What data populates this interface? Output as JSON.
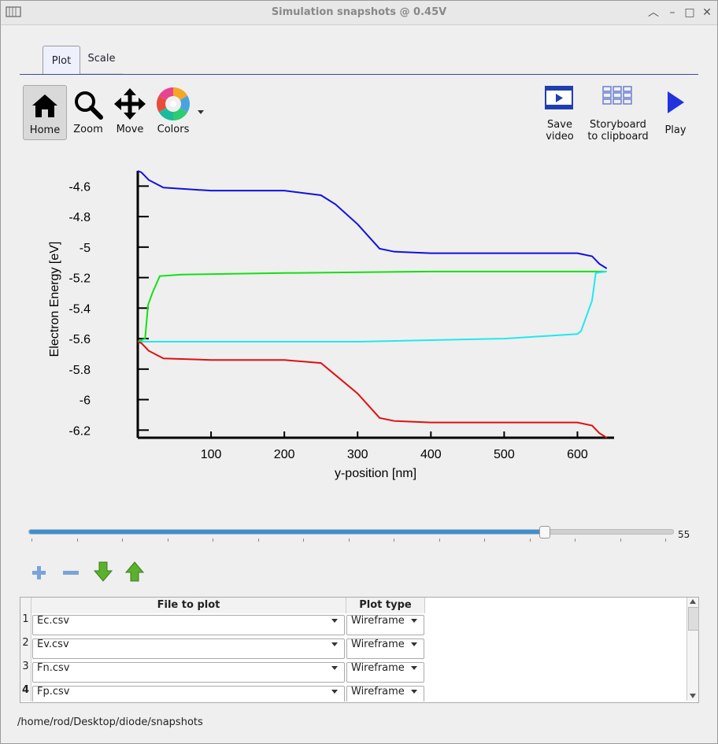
{
  "window": {
    "title": "Simulation snapshots @ 0.45V"
  },
  "tabs": [
    {
      "label": "Plot"
    },
    {
      "label": "Scale"
    }
  ],
  "toolbar": {
    "home": "Home",
    "zoom": "Zoom",
    "move": "Move",
    "colors": "Colors",
    "save_video_1": "Save",
    "save_video_2": "video",
    "storyboard_1": "Storyboard",
    "storyboard_2": "to clipboard",
    "play": "Play"
  },
  "chart_data": {
    "type": "line",
    "xlabel": "y-position [nm]",
    "ylabel": "Electron Energy [eV]",
    "xlim": [
      0,
      650
    ],
    "ylim": [
      -6.25,
      -4.5
    ],
    "xticks": [
      100,
      200,
      300,
      400,
      500,
      600
    ],
    "yticks": [
      -4.6,
      -4.8,
      -5,
      -5.2,
      -5.4,
      -5.6,
      -5.8,
      -6,
      -6.2
    ],
    "ytick_labels": [
      "-4.6",
      "-4.8",
      "-5",
      "-5.2",
      "-5.4",
      "-5.6",
      "-5.8",
      "-6",
      "-6.2"
    ],
    "grid": false,
    "series": [
      {
        "color": "#1010e0",
        "x": [
          0,
          5,
          15,
          35,
          100,
          200,
          250,
          270,
          300,
          330,
          350,
          400,
          500,
          600,
          620,
          630,
          640
        ],
        "y": [
          -4.5,
          -4.51,
          -4.56,
          -4.61,
          -4.63,
          -4.63,
          -4.66,
          -4.72,
          -4.85,
          -5.01,
          -5.03,
          -5.04,
          -5.04,
          -5.04,
          -5.06,
          -5.11,
          -5.14
        ]
      },
      {
        "color": "#12e012",
        "x": [
          0,
          10,
          14,
          20,
          30,
          60,
          200,
          400,
          600,
          640
        ],
        "y": [
          -5.62,
          -5.6,
          -5.38,
          -5.3,
          -5.19,
          -5.18,
          -5.17,
          -5.16,
          -5.16,
          -5.16
        ]
      },
      {
        "color": "#20e8f0",
        "x": [
          0,
          50,
          200,
          300,
          500,
          600,
          605,
          620,
          625,
          640
        ],
        "y": [
          -5.62,
          -5.62,
          -5.62,
          -5.62,
          -5.6,
          -5.57,
          -5.55,
          -5.35,
          -5.17,
          -5.16
        ]
      },
      {
        "color": "#e01010",
        "x": [
          0,
          5,
          15,
          35,
          100,
          200,
          250,
          270,
          300,
          330,
          350,
          400,
          500,
          600,
          620,
          630,
          640
        ],
        "y": [
          -5.62,
          -5.63,
          -5.68,
          -5.73,
          -5.74,
          -5.74,
          -5.76,
          -5.84,
          -5.96,
          -6.12,
          -6.14,
          -6.15,
          -6.15,
          -6.15,
          -6.17,
          -6.22,
          -6.25
        ]
      }
    ]
  },
  "slider": {
    "value": "55",
    "fraction": 0.8
  },
  "table": {
    "headers": [
      "File to plot",
      "Plot type"
    ],
    "rows": [
      {
        "num": "1",
        "file": "Ec.csv",
        "type": "Wireframe"
      },
      {
        "num": "2",
        "file": "Ev.csv",
        "type": "Wireframe"
      },
      {
        "num": "3",
        "file": "Fn.csv",
        "type": "Wireframe"
      },
      {
        "num": "4",
        "file": "Fp.csv",
        "type": "Wireframe"
      }
    ]
  },
  "status": {
    "path": "/home/rod/Desktop/diode/snapshots"
  }
}
